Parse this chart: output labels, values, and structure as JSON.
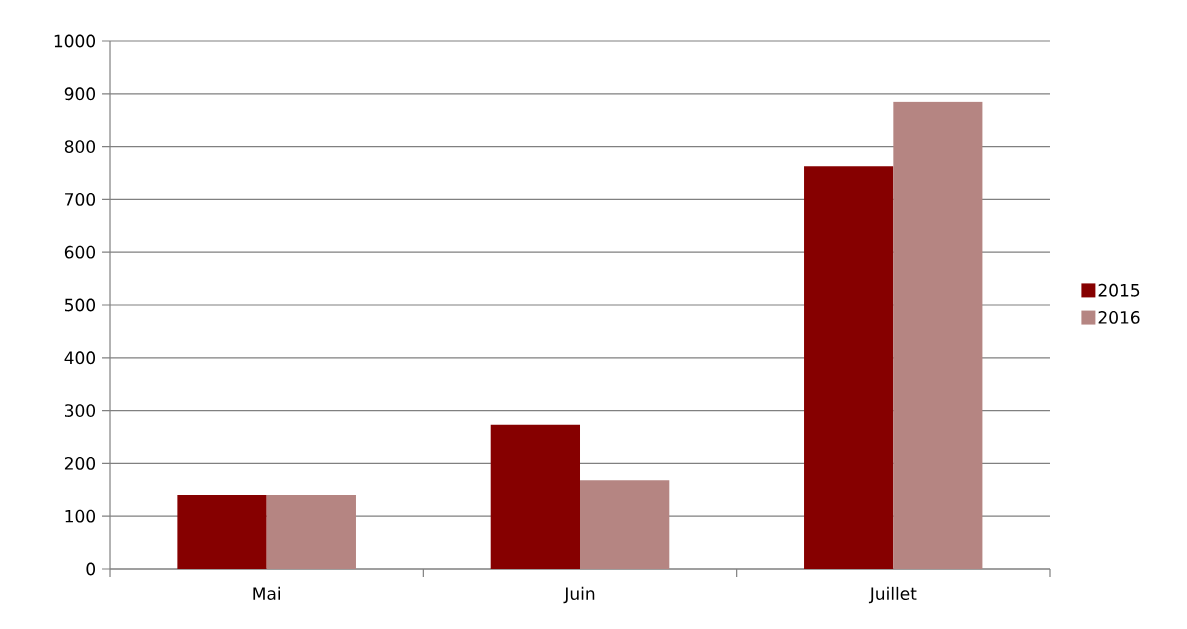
{
  "chart_data": {
    "type": "bar",
    "categories": [
      "Mai",
      "Juin",
      "Juillet"
    ],
    "series": [
      {
        "name": "2015",
        "color": "#860000",
        "values": [
          140,
          273,
          763
        ]
      },
      {
        "name": "2016",
        "color": "#b58582",
        "values": [
          140,
          168,
          885
        ]
      }
    ],
    "ylim": [
      0,
      1000
    ],
    "yticks": [
      0,
      100,
      200,
      300,
      400,
      500,
      600,
      700,
      800,
      900,
      1000
    ],
    "grid": "y",
    "legend": "right"
  }
}
